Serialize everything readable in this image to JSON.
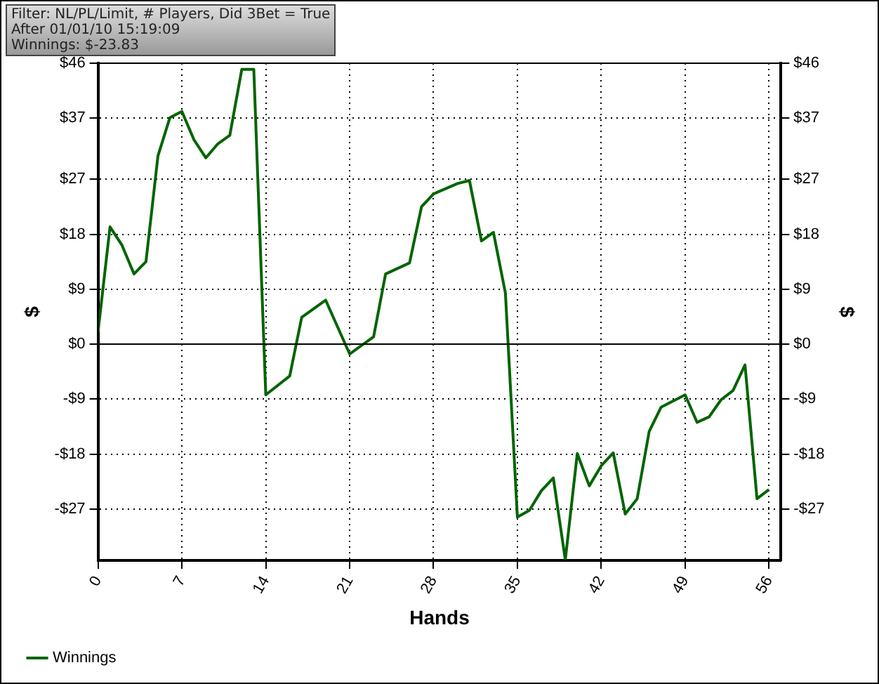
{
  "chart_data": {
    "type": "line",
    "xlabel": "Hands",
    "ylabel": "$",
    "y2label": "$",
    "annotations": [
      "Filter: NL/PL/Limit, # Players, Did 3Bet = True",
      "After 01/01/10 15:19:09",
      "Winnings: $-23.83"
    ],
    "series": [
      {
        "name": "Winnings",
        "color": "#006400",
        "x": [
          0,
          1,
          2,
          3,
          4,
          5,
          6,
          7,
          8,
          9,
          10,
          11,
          12,
          13,
          14,
          16,
          17,
          19,
          21,
          23,
          24,
          26,
          27,
          28,
          30,
          31,
          32,
          33,
          34,
          35,
          36,
          37,
          38,
          39,
          40,
          41,
          42,
          43,
          44,
          45,
          46,
          47,
          49,
          50,
          51,
          52,
          53,
          54,
          55,
          56
        ],
        "values": [
          2.0,
          19.2,
          16.2,
          11.5,
          13.5,
          30.8,
          37.1,
          38.1,
          33.5,
          30.5,
          32.8,
          34.2,
          45,
          45,
          -8.3,
          -5.2,
          4.4,
          7.2,
          -1.6,
          1.2,
          11.5,
          13.3,
          22.5,
          24.6,
          26.3,
          26.8,
          16.9,
          18.3,
          8.4,
          -28.3,
          -27.2,
          -24.0,
          -21.9,
          -35.3,
          -17.9,
          -23.2,
          -19.9,
          -17.8,
          -27.8,
          -25.3,
          -14.3,
          -10.3,
          -8.3,
          -12.8,
          -11.9,
          -9.1,
          -7.6,
          -3.4,
          -25.3,
          -23.8
        ]
      }
    ],
    "xlim": [
      0,
      57
    ],
    "xticks": [
      0,
      7,
      14,
      21,
      28,
      35,
      42,
      49,
      56
    ],
    "ylim": [
      -35.4,
      46
    ],
    "yticks": [
      {
        "value": -27,
        "label": "-$27"
      },
      {
        "value": -18,
        "label": "-$18"
      },
      {
        "value": -9,
        "label": "-$9"
      },
      {
        "value": 0,
        "label": "$0"
      },
      {
        "value": 9,
        "label": "$9"
      },
      {
        "value": 18,
        "label": "$18"
      },
      {
        "value": 27,
        "label": "$27"
      },
      {
        "value": 37,
        "label": "$37"
      },
      {
        "value": 46,
        "label": "$46"
      }
    ],
    "y2lim": [
      -35.4,
      46
    ],
    "y2ticks": [
      {
        "value": -27,
        "label": "-$27"
      },
      {
        "value": -18,
        "label": "-$18"
      },
      {
        "value": -9,
        "label": "-$9"
      },
      {
        "value": 0,
        "label": "$0"
      },
      {
        "value": 9,
        "label": "$9"
      },
      {
        "value": 18,
        "label": "$18"
      },
      {
        "value": 27,
        "label": "$27"
      },
      {
        "value": 37,
        "label": "$37"
      },
      {
        "value": 46,
        "label": "$46"
      }
    ],
    "ref_lines": [
      {
        "axis": "y",
        "value": 0,
        "color": "#000000"
      }
    ],
    "grid": true,
    "legend": "bottom left",
    "marker": "none",
    "line_style": "solid"
  }
}
